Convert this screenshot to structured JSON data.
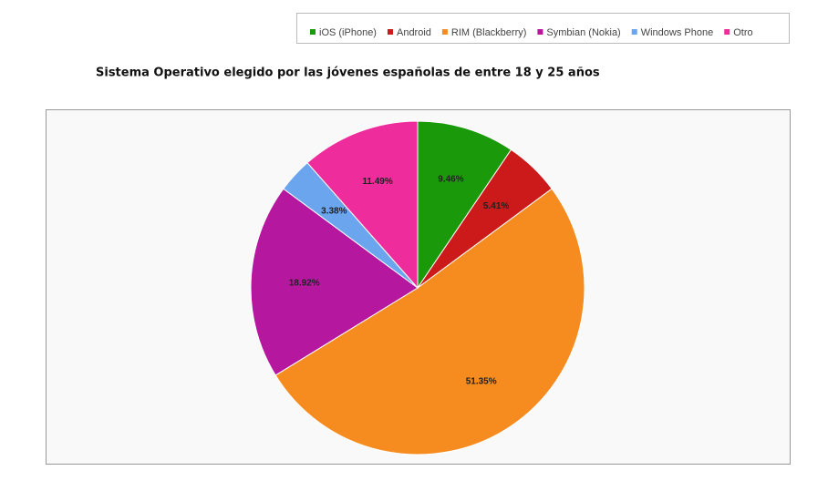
{
  "chart_data": {
    "type": "pie",
    "title": "Sistema Operativo elegido por las jóvenes españolas de entre 18 y 25 años",
    "categories": [
      "iOS (iPhone)",
      "Android",
      "RIM (Blackberry)",
      "Symbian (Nokia)",
      "Windows Phone",
      "Otro"
    ],
    "values": [
      9.46,
      5.41,
      51.35,
      18.92,
      3.38,
      11.49
    ],
    "value_labels": [
      "9.46%",
      "5.41%",
      "51.35%",
      "18.92%",
      "3.38%",
      "11.49%"
    ],
    "colors": [
      "#1a9a0a",
      "#cc1a1a",
      "#f68b1f",
      "#b5179e",
      "#6aa5ee",
      "#ee2c9c"
    ],
    "legend": "top"
  }
}
